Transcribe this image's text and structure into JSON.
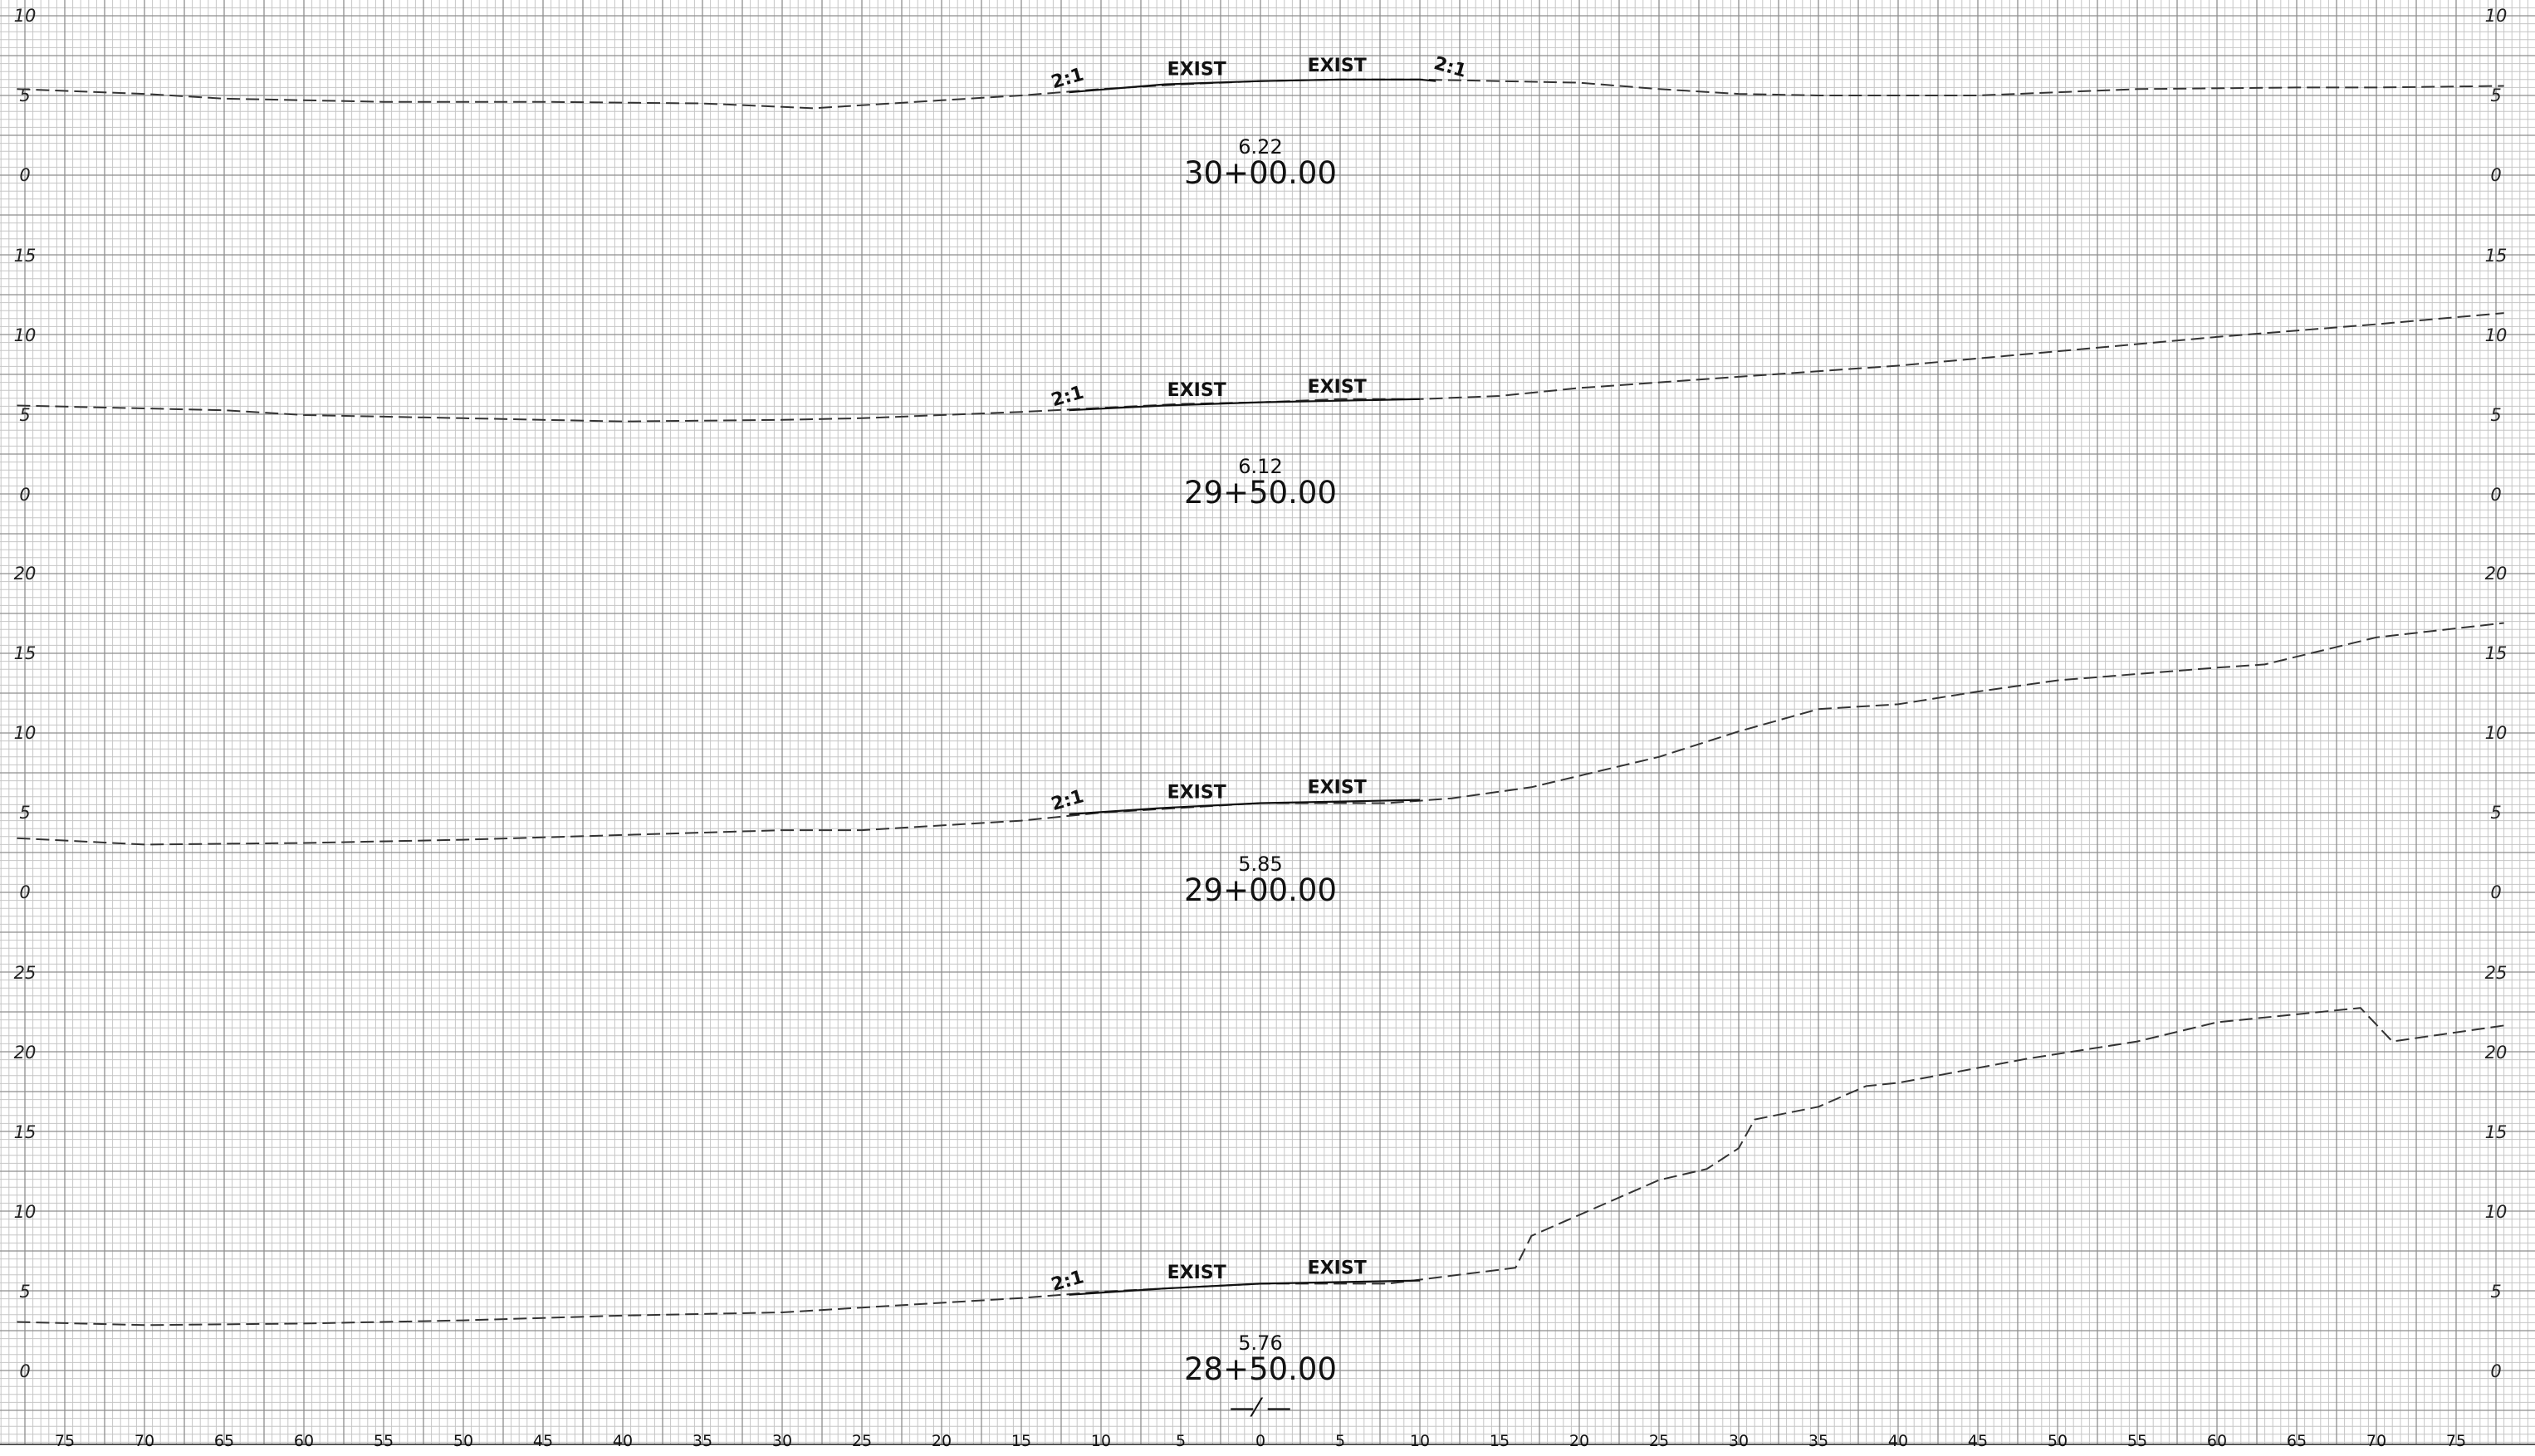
{
  "sheet": {
    "offset_ticks": [
      "75",
      "70",
      "65",
      "60",
      "55",
      "50",
      "45",
      "40",
      "35",
      "30",
      "25",
      "20",
      "15",
      "10",
      "5",
      "0",
      "5",
      "10",
      "15",
      "20",
      "25",
      "30",
      "35",
      "40",
      "45",
      "50",
      "55",
      "60",
      "65",
      "70",
      "75"
    ],
    "centerline_symbol": "—⁄ —"
  },
  "sections": [
    {
      "station": "30+00.00",
      "cl_elevation": "6.22",
      "elev_ticks": [
        0,
        5,
        10
      ],
      "tags": [
        "2:1",
        "EXIST",
        "EXIST",
        "2:1"
      ],
      "existing_ground": [
        [
          -78,
          5.4
        ],
        [
          -70,
          5.1
        ],
        [
          -65,
          4.8
        ],
        [
          -55,
          4.6
        ],
        [
          -45,
          4.6
        ],
        [
          -35,
          4.5
        ],
        [
          -28,
          4.2
        ],
        [
          -20,
          4.7
        ],
        [
          -15,
          5.0
        ],
        [
          -10,
          5.4
        ],
        [
          -5,
          5.7
        ],
        [
          0,
          5.9
        ],
        [
          5,
          6.0
        ],
        [
          10,
          6.0
        ],
        [
          15,
          5.9
        ],
        [
          20,
          5.8
        ],
        [
          25,
          5.4
        ],
        [
          30,
          5.1
        ],
        [
          35,
          5.0
        ],
        [
          45,
          5.0
        ],
        [
          55,
          5.4
        ],
        [
          65,
          5.5
        ],
        [
          70,
          5.5
        ],
        [
          78,
          5.6
        ]
      ],
      "proposed": [
        [
          -12,
          5.2
        ],
        [
          -6,
          5.7
        ],
        [
          0,
          5.9
        ],
        [
          5,
          6.0
        ],
        [
          10,
          6.0
        ],
        [
          11,
          5.9
        ]
      ]
    },
    {
      "station": "29+50.00",
      "cl_elevation": "6.12",
      "elev_ticks": [
        0,
        5,
        10,
        15
      ],
      "tags": [
        "2:1",
        "EXIST",
        "EXIST"
      ],
      "existing_ground": [
        [
          -78,
          5.6
        ],
        [
          -65,
          5.3
        ],
        [
          -60,
          5.0
        ],
        [
          -50,
          4.8
        ],
        [
          -40,
          4.6
        ],
        [
          -30,
          4.7
        ],
        [
          -25,
          4.8
        ],
        [
          -15,
          5.2
        ],
        [
          -5,
          5.7
        ],
        [
          0,
          5.8
        ],
        [
          5,
          6.0
        ],
        [
          10,
          6.0
        ],
        [
          15,
          6.2
        ],
        [
          20,
          6.7
        ],
        [
          30,
          7.4
        ],
        [
          40,
          8.1
        ],
        [
          50,
          9.0
        ],
        [
          60,
          9.9
        ],
        [
          70,
          10.7
        ],
        [
          78,
          11.4
        ]
      ],
      "proposed": [
        [
          -12,
          5.3
        ],
        [
          -6,
          5.6
        ],
        [
          0,
          5.8
        ],
        [
          5,
          5.9
        ],
        [
          10,
          6.0
        ]
      ]
    },
    {
      "station": "29+00.00",
      "cl_elevation": "5.85",
      "elev_ticks": [
        0,
        5,
        10,
        15,
        20
      ],
      "tags": [
        "2:1",
        "EXIST",
        "EXIST"
      ],
      "existing_ground": [
        [
          -78,
          3.4
        ],
        [
          -70,
          3.0
        ],
        [
          -60,
          3.1
        ],
        [
          -50,
          3.3
        ],
        [
          -40,
          3.6
        ],
        [
          -30,
          3.9
        ],
        [
          -25,
          3.9
        ],
        [
          -15,
          4.5
        ],
        [
          -10,
          5.0
        ],
        [
          0,
          5.6
        ],
        [
          8,
          5.6
        ],
        [
          12,
          5.9
        ],
        [
          17,
          6.6
        ],
        [
          25,
          8.5
        ],
        [
          30,
          10.1
        ],
        [
          35,
          11.5
        ],
        [
          40,
          11.8
        ],
        [
          45,
          12.6
        ],
        [
          50,
          13.3
        ],
        [
          60,
          14.1
        ],
        [
          63,
          14.3
        ],
        [
          70,
          16.0
        ],
        [
          78,
          16.9
        ]
      ],
      "proposed": [
        [
          -12,
          4.9
        ],
        [
          -6,
          5.3
        ],
        [
          0,
          5.6
        ],
        [
          5,
          5.7
        ],
        [
          10,
          5.8
        ]
      ]
    },
    {
      "station": "28+50.00",
      "cl_elevation": "5.76",
      "elev_ticks": [
        0,
        5,
        10,
        15,
        20,
        25
      ],
      "tags": [
        "2:1",
        "EXIST",
        "EXIST"
      ],
      "existing_ground": [
        [
          -78,
          3.1
        ],
        [
          -70,
          2.9
        ],
        [
          -60,
          3.0
        ],
        [
          -50,
          3.2
        ],
        [
          -40,
          3.5
        ],
        [
          -30,
          3.7
        ],
        [
          -25,
          4.0
        ],
        [
          -15,
          4.6
        ],
        [
          -10,
          5.0
        ],
        [
          0,
          5.5
        ],
        [
          8,
          5.5
        ],
        [
          12,
          6.0
        ],
        [
          16,
          6.5
        ],
        [
          17,
          8.5
        ],
        [
          25,
          12.0
        ],
        [
          28,
          12.7
        ],
        [
          30,
          14.0
        ],
        [
          31,
          15.8
        ],
        [
          35,
          16.6
        ],
        [
          38,
          17.9
        ],
        [
          40,
          18.1
        ],
        [
          48,
          19.6
        ],
        [
          55,
          20.7
        ],
        [
          60,
          21.9
        ],
        [
          69,
          22.8
        ],
        [
          71,
          20.7
        ],
        [
          78,
          21.7
        ]
      ],
      "proposed": [
        [
          -12,
          4.8
        ],
        [
          -6,
          5.2
        ],
        [
          0,
          5.5
        ],
        [
          5,
          5.6
        ],
        [
          10,
          5.7
        ]
      ]
    }
  ]
}
